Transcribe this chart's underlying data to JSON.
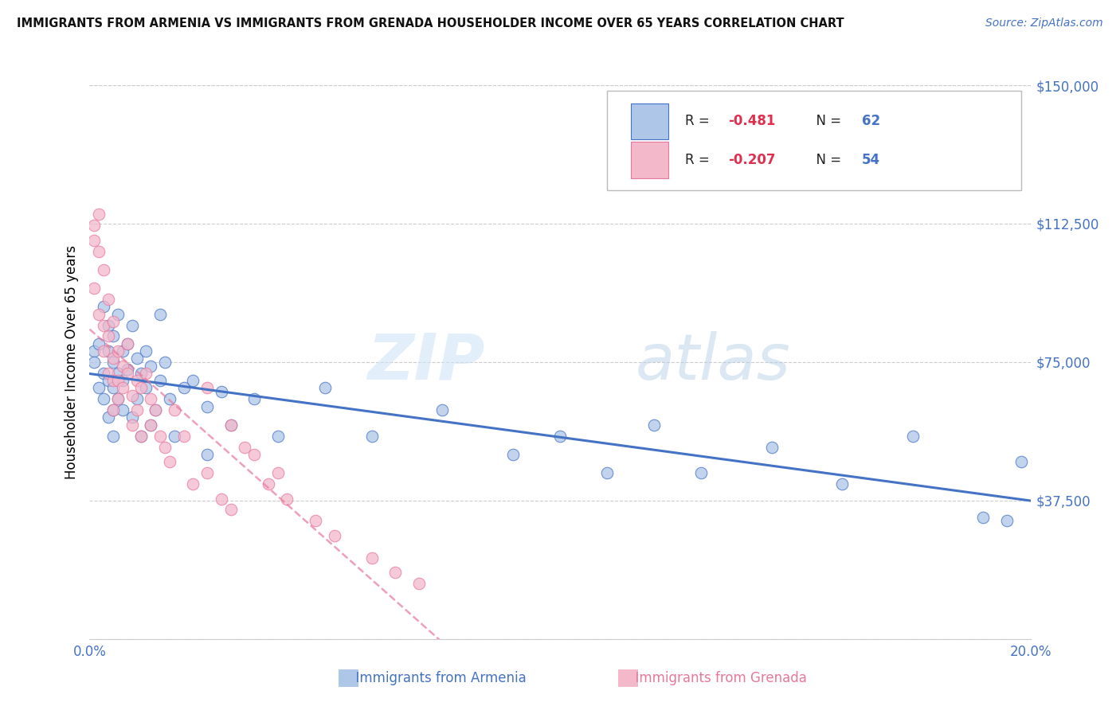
{
  "title": "IMMIGRANTS FROM ARMENIA VS IMMIGRANTS FROM GRENADA HOUSEHOLDER INCOME OVER 65 YEARS CORRELATION CHART",
  "source": "Source: ZipAtlas.com",
  "ylabel": "Householder Income Over 65 years",
  "xlim": [
    0.0,
    0.2
  ],
  "ylim": [
    0,
    150000
  ],
  "yticks": [
    0,
    37500,
    75000,
    112500,
    150000
  ],
  "ytick_labels": [
    "",
    "$37,500",
    "$75,000",
    "$112,500",
    "$150,000"
  ],
  "xticks": [
    0.0,
    0.04,
    0.08,
    0.12,
    0.16,
    0.2
  ],
  "xtick_labels": [
    "0.0%",
    "",
    "",
    "",
    "",
    "20.0%"
  ],
  "legend_r1": "-0.481",
  "legend_n1": "62",
  "legend_r2": "-0.207",
  "legend_n2": "54",
  "series1_color": "#aec6e8",
  "series2_color": "#f4b8cb",
  "line1_color": "#4472c4",
  "line2_color": "#e8789a",
  "watermark_zip": "ZIP",
  "watermark_atlas": "atlas",
  "armenia_x": [
    0.001,
    0.001,
    0.002,
    0.002,
    0.003,
    0.003,
    0.003,
    0.004,
    0.004,
    0.004,
    0.004,
    0.005,
    0.005,
    0.005,
    0.005,
    0.005,
    0.006,
    0.006,
    0.006,
    0.007,
    0.007,
    0.007,
    0.008,
    0.008,
    0.009,
    0.009,
    0.01,
    0.01,
    0.011,
    0.011,
    0.012,
    0.012,
    0.013,
    0.013,
    0.014,
    0.015,
    0.015,
    0.016,
    0.017,
    0.018,
    0.02,
    0.022,
    0.025,
    0.025,
    0.028,
    0.03,
    0.035,
    0.04,
    0.05,
    0.06,
    0.075,
    0.09,
    0.1,
    0.11,
    0.12,
    0.13,
    0.145,
    0.16,
    0.175,
    0.19,
    0.195,
    0.198
  ],
  "armenia_y": [
    78000,
    75000,
    80000,
    68000,
    90000,
    72000,
    65000,
    85000,
    78000,
    70000,
    60000,
    82000,
    75000,
    68000,
    62000,
    55000,
    88000,
    72000,
    65000,
    78000,
    70000,
    62000,
    80000,
    73000,
    85000,
    60000,
    76000,
    65000,
    72000,
    55000,
    78000,
    68000,
    74000,
    58000,
    62000,
    88000,
    70000,
    75000,
    65000,
    55000,
    68000,
    70000,
    63000,
    50000,
    67000,
    58000,
    65000,
    55000,
    68000,
    55000,
    62000,
    50000,
    55000,
    45000,
    58000,
    45000,
    52000,
    42000,
    55000,
    33000,
    32000,
    48000
  ],
  "grenada_x": [
    0.001,
    0.001,
    0.001,
    0.002,
    0.002,
    0.002,
    0.003,
    0.003,
    0.003,
    0.004,
    0.004,
    0.004,
    0.005,
    0.005,
    0.005,
    0.005,
    0.006,
    0.006,
    0.006,
    0.007,
    0.007,
    0.008,
    0.008,
    0.009,
    0.009,
    0.01,
    0.01,
    0.011,
    0.011,
    0.012,
    0.013,
    0.013,
    0.014,
    0.015,
    0.016,
    0.017,
    0.018,
    0.02,
    0.022,
    0.025,
    0.028,
    0.03,
    0.033,
    0.038,
    0.042,
    0.048,
    0.052,
    0.06,
    0.065,
    0.07,
    0.025,
    0.03,
    0.035,
    0.04
  ],
  "grenada_y": [
    112000,
    108000,
    95000,
    115000,
    105000,
    88000,
    100000,
    85000,
    78000,
    92000,
    82000,
    72000,
    86000,
    76000,
    70000,
    62000,
    78000,
    70000,
    65000,
    74000,
    68000,
    80000,
    72000,
    66000,
    58000,
    70000,
    62000,
    68000,
    55000,
    72000,
    65000,
    58000,
    62000,
    55000,
    52000,
    48000,
    62000,
    55000,
    42000,
    45000,
    38000,
    35000,
    52000,
    42000,
    38000,
    32000,
    28000,
    22000,
    18000,
    15000,
    68000,
    58000,
    50000,
    45000
  ],
  "grenada_trend_xmax": 0.083
}
